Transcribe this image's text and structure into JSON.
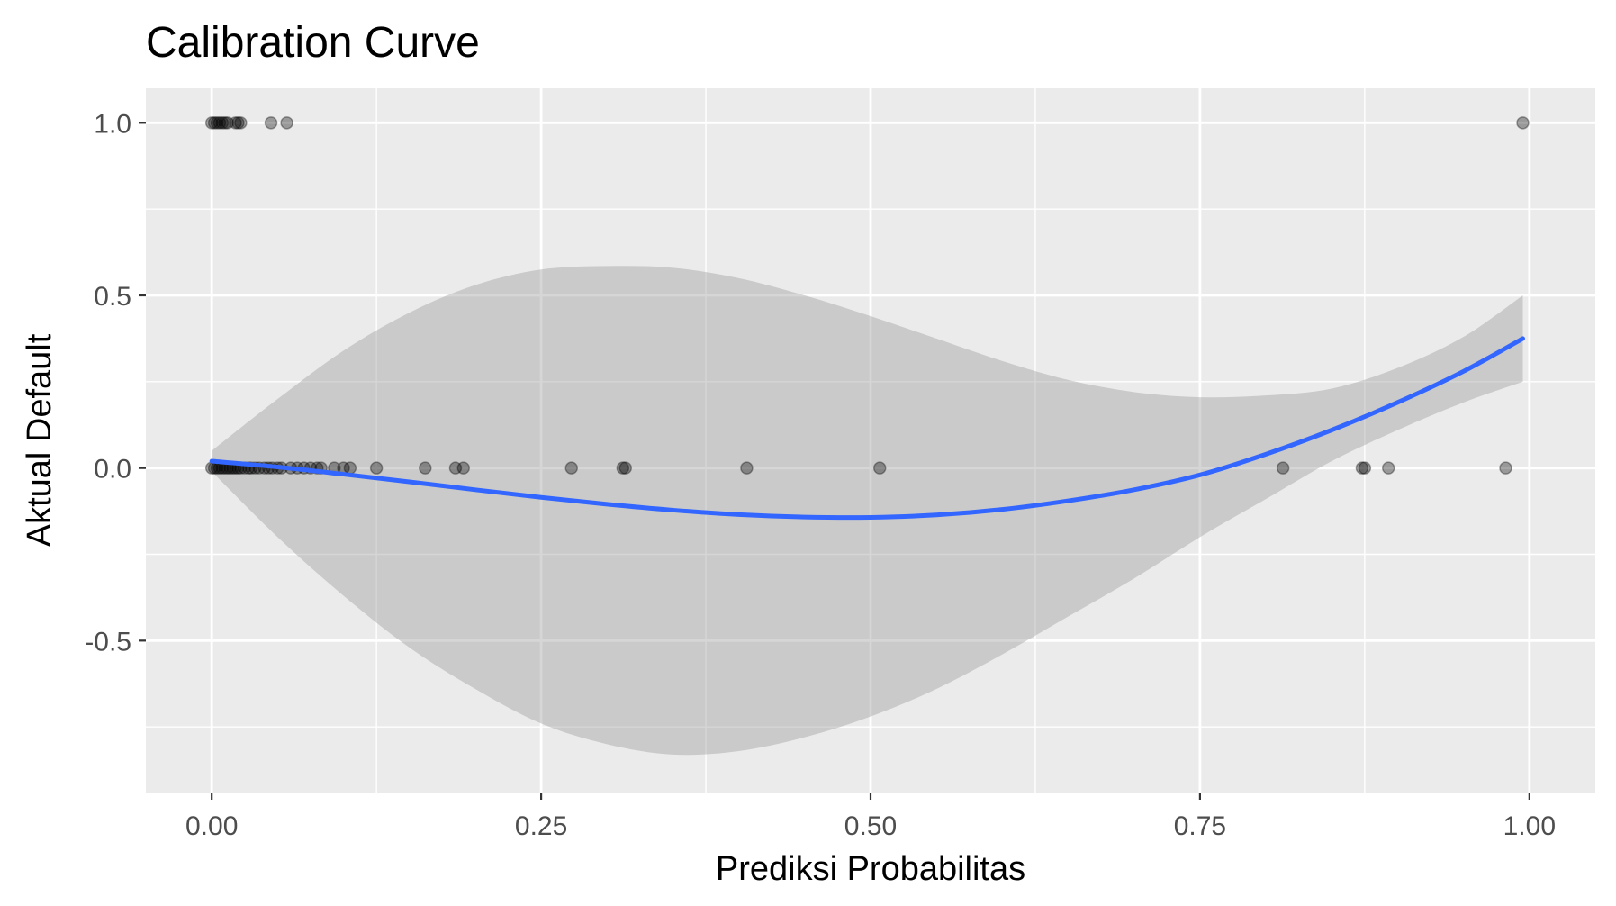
{
  "chart_data": {
    "type": "scatter",
    "title": "Calibration Curve",
    "xlabel": "Prediksi Probabilitas",
    "ylabel": "Aktual Default",
    "xlim": [
      -0.05,
      1.05
    ],
    "ylim": [
      -0.94,
      1.1
    ],
    "x_ticks": [
      0.0,
      0.25,
      0.5,
      0.75,
      1.0
    ],
    "x_tick_labels": [
      "0.00",
      "0.25",
      "0.50",
      "0.75",
      "1.00"
    ],
    "y_ticks": [
      -0.5,
      0.0,
      0.5,
      1.0
    ],
    "y_tick_labels": [
      "-0.5",
      "0.0",
      "0.5",
      "1.0"
    ],
    "grid": true,
    "legend": "none",
    "colors": {
      "panel_background": "#ebebeb",
      "grid": "#ffffff",
      "points": "#000000",
      "points_alpha": 0.35,
      "smooth_line": "#3366ff",
      "confidence_band": "#bfbfbf"
    },
    "series": [
      {
        "type": "points",
        "points": [
          [
            0.0,
            1
          ],
          [
            0.002,
            1
          ],
          [
            0.004,
            1
          ],
          [
            0.006,
            1
          ],
          [
            0.008,
            1
          ],
          [
            0.01,
            1
          ],
          [
            0.012,
            1
          ],
          [
            0.018,
            1
          ],
          [
            0.02,
            1
          ],
          [
            0.022,
            1
          ],
          [
            0.045,
            1
          ],
          [
            0.057,
            1
          ],
          [
            0.995,
            1
          ],
          [
            0.0,
            0
          ],
          [
            0.002,
            0
          ],
          [
            0.004,
            0
          ],
          [
            0.006,
            0
          ],
          [
            0.008,
            0
          ],
          [
            0.01,
            0
          ],
          [
            0.012,
            0
          ],
          [
            0.014,
            0
          ],
          [
            0.016,
            0
          ],
          [
            0.018,
            0
          ],
          [
            0.02,
            0
          ],
          [
            0.022,
            0
          ],
          [
            0.025,
            0
          ],
          [
            0.028,
            0
          ],
          [
            0.03,
            0
          ],
          [
            0.033,
            0
          ],
          [
            0.036,
            0
          ],
          [
            0.04,
            0
          ],
          [
            0.043,
            0
          ],
          [
            0.046,
            0
          ],
          [
            0.05,
            0
          ],
          [
            0.053,
            0
          ],
          [
            0.06,
            0
          ],
          [
            0.065,
            0
          ],
          [
            0.07,
            0
          ],
          [
            0.075,
            0
          ],
          [
            0.08,
            0
          ],
          [
            0.083,
            0
          ],
          [
            0.093,
            0
          ],
          [
            0.1,
            0
          ],
          [
            0.105,
            0
          ],
          [
            0.125,
            0
          ],
          [
            0.162,
            0
          ],
          [
            0.185,
            0
          ],
          [
            0.191,
            0
          ],
          [
            0.273,
            0
          ],
          [
            0.312,
            0
          ],
          [
            0.314,
            0
          ],
          [
            0.406,
            0
          ],
          [
            0.507,
            0
          ],
          [
            0.813,
            0
          ],
          [
            0.873,
            0
          ],
          [
            0.875,
            0
          ],
          [
            0.893,
            0
          ],
          [
            0.982,
            0
          ]
        ]
      },
      {
        "type": "smooth",
        "x": [
          0.0,
          0.05,
          0.1,
          0.15,
          0.2,
          0.25,
          0.3,
          0.35,
          0.4,
          0.45,
          0.5,
          0.55,
          0.6,
          0.65,
          0.7,
          0.75,
          0.8,
          0.85,
          0.9,
          0.95,
          0.995
        ],
        "y": [
          0.02,
          0.003,
          -0.018,
          -0.04,
          -0.063,
          -0.085,
          -0.105,
          -0.122,
          -0.135,
          -0.142,
          -0.143,
          -0.136,
          -0.12,
          -0.095,
          -0.063,
          -0.02,
          0.04,
          0.11,
          0.19,
          0.28,
          0.375
        ],
        "ymin": [
          -0.01,
          -0.2,
          -0.37,
          -0.52,
          -0.64,
          -0.74,
          -0.8,
          -0.83,
          -0.82,
          -0.78,
          -0.72,
          -0.64,
          -0.54,
          -0.43,
          -0.32,
          -0.2,
          -0.09,
          0.02,
          0.11,
          0.19,
          0.25
        ],
        "ymax": [
          0.05,
          0.2,
          0.34,
          0.45,
          0.53,
          0.575,
          0.585,
          0.58,
          0.55,
          0.5,
          0.44,
          0.375,
          0.31,
          0.255,
          0.22,
          0.205,
          0.21,
          0.23,
          0.29,
          0.38,
          0.5
        ]
      }
    ]
  }
}
